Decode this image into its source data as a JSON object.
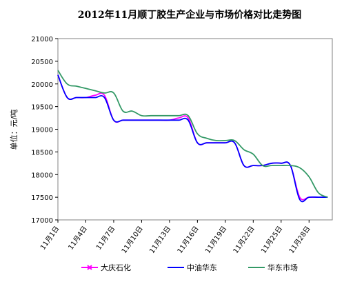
{
  "chart_data": {
    "type": "line",
    "title": "2012年11月顺丁胶生产企业与市场价格对比走势图",
    "xlabel": "",
    "ylabel": "单位：元/吨",
    "ylim": [
      17000,
      21000
    ],
    "yticks": [
      17000,
      17500,
      18000,
      18500,
      19000,
      19500,
      20000,
      20500,
      21000
    ],
    "xlim": [
      1,
      30.5
    ],
    "x_tick_labels": [
      "11月1日",
      "11月4日",
      "11月7日",
      "11月10日",
      "11月13日",
      "11月16日",
      "11月19日",
      "11月22日",
      "11月25日",
      "11月28日"
    ],
    "x_tick_values": [
      1,
      4,
      7,
      10,
      13,
      16,
      19,
      22,
      25,
      28
    ],
    "legend_position": "bottom",
    "grid": false,
    "x": [
      1,
      2,
      3,
      4,
      5,
      6,
      7,
      8,
      9,
      10,
      11,
      12,
      13,
      14,
      15,
      16,
      17,
      18,
      19,
      20,
      21,
      22,
      23,
      24,
      25,
      26,
      27,
      28,
      29,
      30
    ],
    "series": [
      {
        "name": "大庆石化",
        "color": "#ff00ff",
        "values": [
          20200,
          19700,
          19700,
          19700,
          19750,
          19750,
          19200,
          19200,
          19200,
          19200,
          19200,
          19200,
          19200,
          19250,
          19250,
          18700,
          18700,
          18700,
          18700,
          18700,
          18200,
          18200,
          18200,
          18250,
          18250,
          18200,
          17500,
          17500,
          17500,
          17500
        ]
      },
      {
        "name": "中油华东",
        "color": "#0000ff",
        "values": [
          20200,
          19700,
          19700,
          19700,
          19700,
          19700,
          19200,
          19200,
          19200,
          19200,
          19200,
          19200,
          19200,
          19200,
          19200,
          18700,
          18700,
          18700,
          18700,
          18700,
          18200,
          18200,
          18200,
          18250,
          18250,
          18200,
          17450,
          17500,
          17500,
          17500
        ]
      },
      {
        "name": "华东市场",
        "color": "#339966",
        "values": [
          20300,
          20000,
          19950,
          19900,
          19850,
          19800,
          19800,
          19400,
          19400,
          19300,
          19300,
          19300,
          19300,
          19300,
          19300,
          18900,
          18800,
          18750,
          18750,
          18750,
          18550,
          18450,
          18200,
          18200,
          18200,
          18200,
          18150,
          17950,
          17600,
          17500
        ]
      }
    ]
  }
}
